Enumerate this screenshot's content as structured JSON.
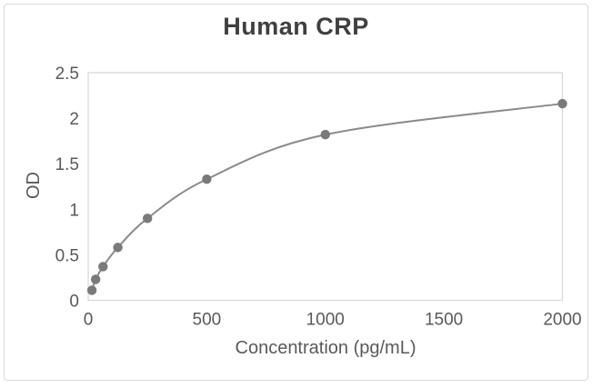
{
  "chart_data": {
    "type": "line",
    "title": "Human CRP",
    "xlabel": "Concentration (pg/mL)",
    "ylabel": "OD",
    "x": [
      15.6,
      31.25,
      62.5,
      125,
      250,
      500,
      1000,
      2000
    ],
    "y": [
      0.11,
      0.23,
      0.37,
      0.58,
      0.9,
      1.33,
      1.82,
      2.16
    ],
    "xlim": [
      0,
      2000
    ],
    "ylim": [
      0,
      2.5
    ],
    "x_ticks": [
      0,
      500,
      1000,
      1500,
      2000
    ],
    "y_ticks": [
      0,
      0.5,
      1,
      1.5,
      2,
      2.5
    ],
    "grid": false,
    "legend": null,
    "marker_shape": "circle",
    "colors": {
      "marker": "#7a7a7a",
      "line": "#8a8a8a",
      "plot_border": "#d9d9d9",
      "card_border": "#d9d9d9",
      "title_text": "#3f3f3f",
      "tick_text": "#595959",
      "axis_title_text": "#595959",
      "background": "#ffffff"
    }
  }
}
